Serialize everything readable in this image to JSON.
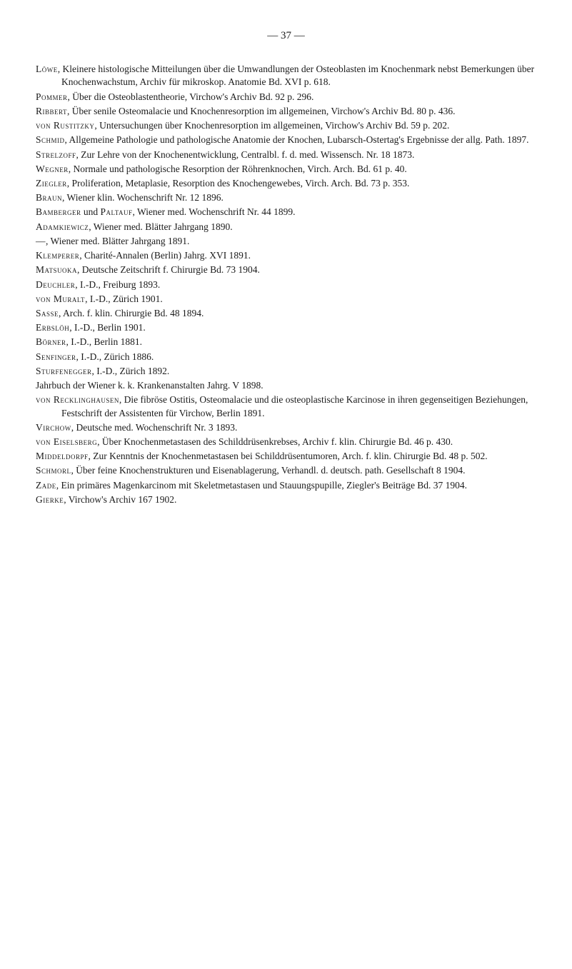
{
  "page_number": "— 37 —",
  "entries": [
    {
      "author": "Löwe",
      "text": ", Kleinere histologische Mitteilungen über die Umwandlungen der Osteoblasten im Knochenmark nebst Bemerkungen über Knochenwachstum, Archiv für mikroskop. Anatomie Bd. XVI p. 618."
    },
    {
      "author": "Pommer",
      "text": ", Über die Osteoblastentheorie, Virchow's Archiv Bd. 92 p. 296."
    },
    {
      "author": "Ribbert",
      "text": ", Über senile Osteomalacie und Knochenresorption im allgemeinen, Virchow's Archiv Bd. 80 p. 436."
    },
    {
      "author": "von Rustitzky",
      "text": ", Untersuchungen über Knochenresorption im allgemeinen, Virchow's Archiv Bd. 59 p. 202."
    },
    {
      "author": "Schmid",
      "text": ", Allgemeine Pathologie und pathologische Anatomie der Knochen, Lubarsch-Ostertag's Ergebnisse der allg. Path. 1897."
    },
    {
      "author": "Strelzoff",
      "text": ", Zur Lehre von der Knochenentwicklung, Centralbl. f. d. med. Wissensch. Nr. 18 1873."
    },
    {
      "author": "Wegner",
      "text": ", Normale und pathologische Resorption der Röhrenknochen, Virch. Arch. Bd. 61 p. 40."
    },
    {
      "author": "Ziegler",
      "text": ", Proliferation, Metaplasie, Resorption des Knochengewebes, Virch. Arch. Bd. 73 p. 353."
    },
    {
      "author": "Braun",
      "text": ", Wiener klin. Wochenschrift Nr. 12 1896."
    },
    {
      "author": "Bamberger",
      "text": " und ",
      "author2": "Paltauf",
      "text2": ", Wiener med. Wochenschrift Nr. 44 1899."
    },
    {
      "author": "Adamkiewicz",
      "text": ", Wiener med. Blätter Jahrgang 1890."
    },
    {
      "author": "—",
      "text": ", Wiener med. Blätter Jahrgang 1891."
    },
    {
      "author": "Klemperer",
      "text": ", Charité-Annalen (Berlin) Jahrg. XVI 1891."
    },
    {
      "author": "Matsuoka",
      "text": ", Deutsche Zeitschrift f. Chirurgie Bd. 73 1904."
    },
    {
      "author": "Deuchler",
      "text": ", I.-D., Freiburg 1893."
    },
    {
      "author": "von Muralt",
      "text": ", I.-D., Zürich 1901."
    },
    {
      "author": "Sasse",
      "text": ", Arch. f. klin. Chirurgie Bd. 48 1894."
    },
    {
      "author": "Erbslöh",
      "text": ", I.-D., Berlin 1901."
    },
    {
      "author": "Börner",
      "text": ", I.-D., Berlin 1881."
    },
    {
      "author": "Senfinger",
      "text": ", I.-D., Zürich 1886."
    },
    {
      "author": "Sturfenegger",
      "text": ", I.-D., Zürich 1892."
    },
    {
      "author": "",
      "text": "Jahrbuch der Wiener k. k. Krankenanstalten Jahrg. V 1898."
    },
    {
      "author": "von Recklinghausen",
      "text": ", Die fibröse Ostitis, Osteomalacie und die osteoplastische Karcinose in ihren gegenseitigen Beziehungen, Festschrift der Assistenten für Virchow, Berlin 1891."
    },
    {
      "author": "Virchow",
      "text": ", Deutsche med. Wochenschrift Nr. 3 1893."
    },
    {
      "author": "von Eiselsberg",
      "text": ", Über Knochenmetastasen des Schilddrüsenkrebses, Archiv f. klin. Chirurgie Bd. 46 p. 430."
    },
    {
      "author": "Middeldorpf",
      "text": ", Zur Kenntnis der Knochenmetastasen bei Schilddrüsentumoren, Arch. f. klin. Chirurgie Bd. 48 p. 502."
    },
    {
      "author": "Schmorl",
      "text": ", Über feine Knochenstrukturen und Eisenablagerung, Verhandl. d. deutsch. path. Gesellschaft 8 1904."
    },
    {
      "author": "Zade",
      "text": ", Ein primäres Magenkarcinom mit Skeletmetastasen und Stauungspupille, Ziegler's Beiträge Bd. 37 1904."
    },
    {
      "author": "Gierke",
      "text": ", Virchow's Archiv 167 1902."
    }
  ]
}
